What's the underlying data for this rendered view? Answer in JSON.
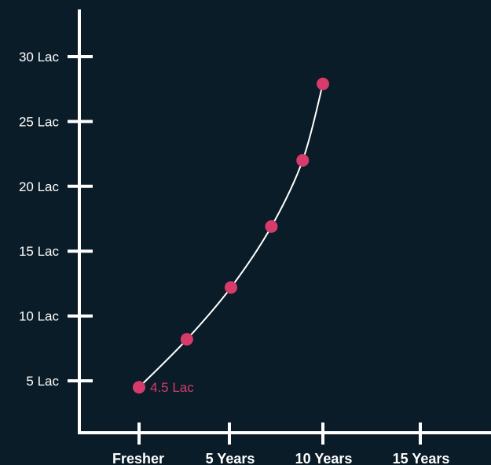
{
  "chart_data": {
    "type": "line",
    "title": "",
    "xlabel": "",
    "ylabel": "",
    "x_categories": [
      "Fresher",
      "5 Years",
      "10 Years",
      "15 Years"
    ],
    "x_tick_values": [
      0,
      5,
      10,
      15
    ],
    "y_ticks": [
      {
        "value": 5,
        "label": "5 Lac"
      },
      {
        "value": 10,
        "label": "10 Lac"
      },
      {
        "value": 15,
        "label": "15 Lac"
      },
      {
        "value": 20,
        "label": "20 Lac"
      },
      {
        "value": 25,
        "label": "25 Lac"
      },
      {
        "value": 30,
        "label": "30 Lac"
      }
    ],
    "series": [
      {
        "points": [
          {
            "x": 0,
            "y": 4.5
          },
          {
            "x": 2.6,
            "y": 8.2
          },
          {
            "x": 5,
            "y": 12.2
          },
          {
            "x": 7.2,
            "y": 16.9
          },
          {
            "x": 8.9,
            "y": 22.0
          },
          {
            "x": 10,
            "y": 27.9
          }
        ]
      }
    ],
    "annotations": [
      {
        "x": 0,
        "y": 4.5,
        "text": "4.5 Lac"
      }
    ],
    "grid": false,
    "colors": {
      "background": "#0a1c27",
      "axis": "#ffffff",
      "curve": "#ffffff",
      "point": "#d63b6c",
      "annotation": "#d63b6c",
      "tick_label": "#ffffff"
    }
  }
}
